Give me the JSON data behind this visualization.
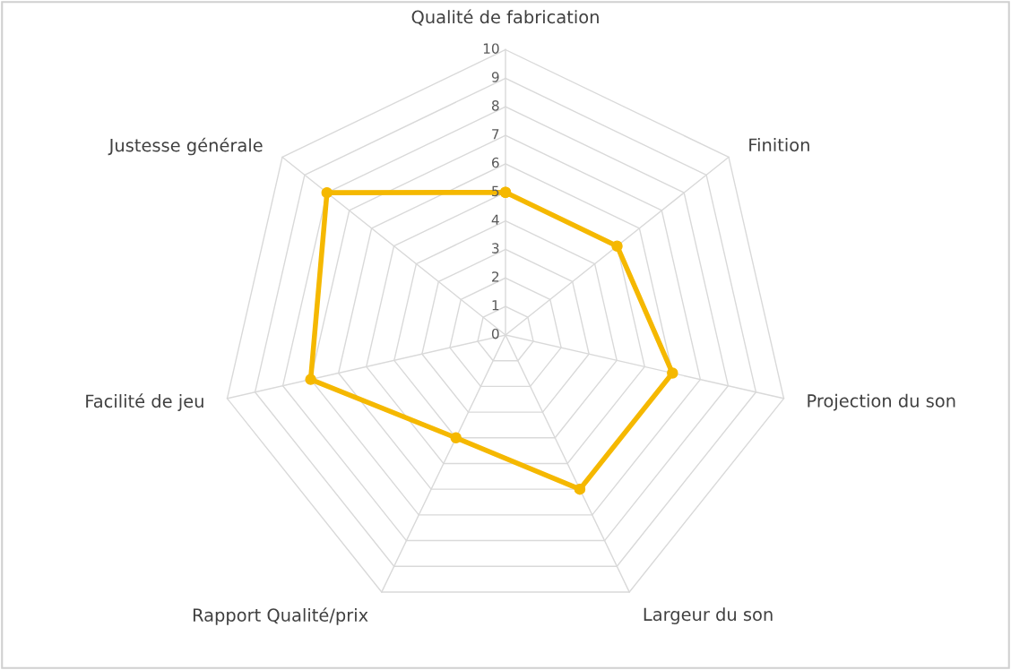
{
  "chart_data": {
    "type": "radar",
    "categories": [
      "Qualité de fabrication",
      "Finition",
      "Projection du son",
      "Largeur du son",
      "Rapport Qualité/prix",
      "Facilité de jeu",
      "Justesse générale"
    ],
    "series": [
      {
        "color": "#f5b800",
        "values": [
          5,
          5,
          6,
          6,
          4,
          7,
          8
        ]
      }
    ],
    "ylim": [
      0,
      10
    ],
    "yticks": [
      0,
      1,
      2,
      3,
      4,
      5,
      6,
      7,
      8,
      9,
      10
    ],
    "grid": true,
    "marker": "circle",
    "line_style": "solid"
  }
}
